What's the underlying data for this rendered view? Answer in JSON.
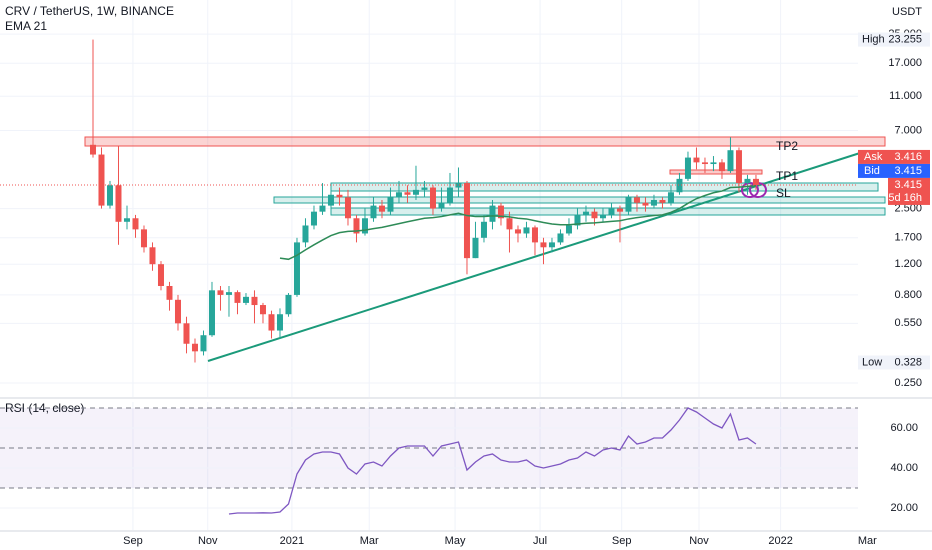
{
  "chart_data": {
    "type": "candlestick",
    "title": "CRV / TetherUS, 1W, BINANCE",
    "currency": "USDT",
    "x": [
      0,
      1,
      2,
      3,
      4,
      5,
      6,
      7,
      8,
      9,
      10,
      11,
      12,
      13,
      14,
      15,
      16,
      17,
      18,
      19,
      20,
      21,
      22,
      23,
      24,
      25,
      26,
      27,
      28,
      29,
      30,
      31,
      32,
      33,
      34,
      35,
      36,
      37,
      38,
      39,
      40,
      41,
      42,
      43,
      44,
      45,
      46,
      47,
      48,
      49,
      50,
      51,
      52,
      53,
      54,
      55,
      56,
      57,
      58,
      59,
      60,
      61,
      62,
      63,
      64,
      65,
      66,
      67,
      68,
      69,
      70,
      71,
      72,
      73,
      74,
      75,
      76,
      77,
      78
    ],
    "open": [
      5.8,
      5.1,
      2.6,
      3.4,
      2.1,
      2.2,
      1.9,
      1.5,
      1.2,
      0.9,
      0.75,
      0.55,
      0.42,
      0.38,
      0.47,
      0.85,
      0.8,
      0.83,
      0.72,
      0.78,
      0.7,
      0.62,
      0.5,
      0.62,
      0.8,
      1.6,
      2.0,
      2.4,
      2.6,
      3.0,
      2.9,
      2.2,
      1.8,
      2.2,
      2.6,
      2.4,
      2.9,
      3.1,
      3.0,
      3.2,
      3.3,
      2.5,
      2.7,
      3.3,
      3.5,
      1.3,
      1.7,
      2.1,
      2.6,
      2.2,
      1.9,
      1.8,
      1.95,
      1.6,
      1.5,
      1.6,
      1.8,
      2.0,
      2.3,
      2.4,
      2.2,
      2.3,
      2.5,
      2.4,
      2.9,
      2.7,
      2.6,
      2.8,
      2.7,
      3.1,
      3.7,
      4.9,
      4.6,
      4.5,
      4.6,
      4.1,
      5.4,
      3.5,
      3.7
    ],
    "high": [
      23.255,
      5.6,
      3.6,
      5.7,
      2.6,
      2.3,
      2.0,
      1.6,
      1.25,
      0.95,
      0.8,
      0.6,
      0.45,
      0.5,
      0.95,
      0.9,
      0.9,
      0.85,
      0.82,
      0.85,
      0.72,
      0.65,
      0.67,
      0.82,
      1.7,
      2.2,
      2.6,
      3.5,
      3.5,
      3.3,
      3.2,
      2.3,
      2.5,
      2.9,
      2.8,
      3.3,
      3.6,
      3.4,
      4.4,
      3.6,
      3.4,
      3.3,
      4.0,
      4.3,
      3.6,
      2.1,
      2.3,
      2.8,
      2.7,
      2.4,
      2.0,
      2.1,
      2.0,
      1.7,
      1.7,
      1.9,
      2.2,
      2.5,
      2.6,
      2.5,
      2.5,
      2.7,
      2.6,
      3.0,
      3.0,
      2.9,
      3.0,
      2.9,
      3.4,
      4.0,
      5.3,
      5.6,
      4.9,
      5.0,
      4.8,
      6.4,
      5.6,
      3.9,
      3.9
    ],
    "low": [
      4.9,
      2.5,
      2.5,
      1.55,
      1.9,
      1.7,
      1.4,
      1.1,
      0.85,
      0.65,
      0.5,
      0.37,
      0.328,
      0.36,
      0.46,
      0.65,
      0.6,
      0.62,
      0.7,
      0.55,
      0.55,
      0.45,
      0.45,
      0.6,
      0.78,
      1.5,
      1.9,
      2.3,
      2.5,
      2.6,
      2.0,
      1.6,
      1.75,
      2.1,
      2.2,
      2.3,
      2.7,
      2.7,
      2.8,
      2.9,
      2.3,
      2.4,
      2.6,
      2.9,
      1.05,
      1.3,
      1.6,
      1.9,
      2.0,
      1.4,
      1.6,
      1.7,
      1.35,
      1.2,
      1.4,
      1.55,
      1.75,
      1.9,
      2.1,
      2.0,
      2.1,
      2.2,
      1.6,
      2.3,
      2.4,
      2.4,
      2.5,
      2.5,
      2.6,
      3.0,
      3.6,
      4.2,
      4.0,
      4.1,
      3.7,
      4.0,
      3.1,
      3.0,
      3.2
    ],
    "close": [
      5.1,
      2.6,
      3.4,
      2.1,
      2.2,
      1.9,
      1.5,
      1.2,
      0.9,
      0.75,
      0.55,
      0.42,
      0.38,
      0.47,
      0.85,
      0.8,
      0.83,
      0.72,
      0.78,
      0.7,
      0.62,
      0.5,
      0.62,
      0.8,
      1.6,
      2.0,
      2.4,
      2.6,
      3.0,
      2.9,
      2.2,
      1.8,
      2.2,
      2.6,
      2.4,
      2.9,
      3.1,
      3.0,
      3.2,
      3.3,
      2.5,
      2.7,
      3.3,
      3.5,
      1.3,
      1.7,
      2.1,
      2.6,
      2.2,
      1.9,
      1.8,
      1.95,
      1.6,
      1.5,
      1.6,
      1.8,
      2.0,
      2.3,
      2.4,
      2.2,
      2.3,
      2.5,
      2.4,
      2.9,
      2.7,
      2.6,
      2.8,
      2.7,
      3.1,
      3.7,
      4.9,
      4.6,
      4.5,
      4.6,
      4.1,
      5.4,
      3.5,
      3.7,
      3.415
    ],
    "up_color": "#26a69a",
    "down_color": "#ef5350",
    "ema": {
      "name": "EMA 21",
      "color": "#2e8b57",
      "values": [
        null,
        null,
        null,
        null,
        null,
        null,
        null,
        null,
        null,
        null,
        null,
        null,
        null,
        null,
        null,
        null,
        null,
        null,
        null,
        null,
        null,
        null,
        1.3,
        1.28,
        1.35,
        1.45,
        1.55,
        1.65,
        1.75,
        1.82,
        1.85,
        1.86,
        1.88,
        1.92,
        1.95,
        2.0,
        2.05,
        2.1,
        2.15,
        2.2,
        2.22,
        2.25,
        2.3,
        2.35,
        2.28,
        2.25,
        2.25,
        2.27,
        2.26,
        2.24,
        2.2,
        2.18,
        2.13,
        2.08,
        2.04,
        2.02,
        2.02,
        2.04,
        2.06,
        2.07,
        2.09,
        2.11,
        2.13,
        2.18,
        2.22,
        2.25,
        2.28,
        2.3,
        2.38,
        2.5,
        2.68,
        2.85,
        2.97,
        3.08,
        3.15,
        3.3,
        3.32,
        3.35,
        3.38
      ]
    },
    "log_scale": true,
    "grid": true,
    "xlim": [
      -10.94,
      98.71
    ],
    "xticks": [
      {
        "value": 4.7,
        "label": "Sep"
      },
      {
        "value": 13.5,
        "label": "Nov"
      },
      {
        "value": 23.4,
        "label": "2021"
      },
      {
        "value": 32.5,
        "label": "Mar"
      },
      {
        "value": 42.6,
        "label": "May"
      },
      {
        "value": 52.6,
        "label": "Jul"
      },
      {
        "value": 62.2,
        "label": "Sep"
      },
      {
        "value": 71.3,
        "label": "Nov"
      },
      {
        "value": 80.9,
        "label": "2022"
      },
      {
        "value": 91.1,
        "label": "Mar"
      }
    ],
    "ylim": [
      0.208,
      39.2
    ],
    "yticks": [
      {
        "value": 25,
        "label": "25.000"
      },
      {
        "value": 17,
        "label": "17.000"
      },
      {
        "value": 11,
        "label": "11.000"
      },
      {
        "value": 7,
        "label": "7.000"
      },
      {
        "value": 2.5,
        "label": "2.500"
      },
      {
        "value": 1.7,
        "label": "1.700"
      },
      {
        "value": 1.2,
        "label": "1.200"
      },
      {
        "value": 0.8,
        "label": "0.800"
      },
      {
        "value": 0.55,
        "label": "0.550"
      },
      {
        "value": 0.25,
        "label": "0.250"
      }
    ],
    "price_labels": [
      {
        "name": "High",
        "value": 23.255
      },
      {
        "name": "Low",
        "value": 0.328
      }
    ],
    "quote": [
      {
        "name": "Ask",
        "value": 3.416,
        "color": "#ef5350"
      },
      {
        "name": "Bid",
        "value": 3.415,
        "color": "#2962ff"
      }
    ],
    "last_price": {
      "value": 3.415,
      "countdown": "5d 16h",
      "color": "#ef5350"
    },
    "annotations": [
      "TP2",
      "TP1",
      "SL"
    ],
    "rsi": {
      "name": "RSI (14, close)",
      "color": "#7e57c2",
      "values": [
        null,
        null,
        null,
        null,
        null,
        null,
        null,
        null,
        null,
        null,
        null,
        null,
        null,
        null,
        null,
        null,
        17,
        17.5,
        17.5,
        17.5,
        17.6,
        17.5,
        18,
        22,
        37,
        44,
        47,
        48,
        48,
        47,
        40,
        37,
        42,
        43,
        41,
        46,
        50,
        51,
        51,
        51,
        46,
        51,
        52,
        53,
        39,
        43,
        46,
        47,
        44,
        43,
        43,
        44,
        41,
        40,
        41,
        42,
        44,
        45,
        48,
        46,
        49,
        50,
        49,
        56,
        52,
        53,
        55,
        55,
        59,
        64,
        70,
        68,
        65,
        62,
        60,
        67,
        54,
        55,
        52
      ],
      "ylim": [
        9,
        73
      ],
      "yticks": [
        {
          "value": 60,
          "label": "60.00"
        },
        {
          "value": 40,
          "label": "40.00"
        },
        {
          "value": 20,
          "label": "20.00"
        }
      ],
      "levels": [
        30,
        50,
        70
      ]
    }
  }
}
